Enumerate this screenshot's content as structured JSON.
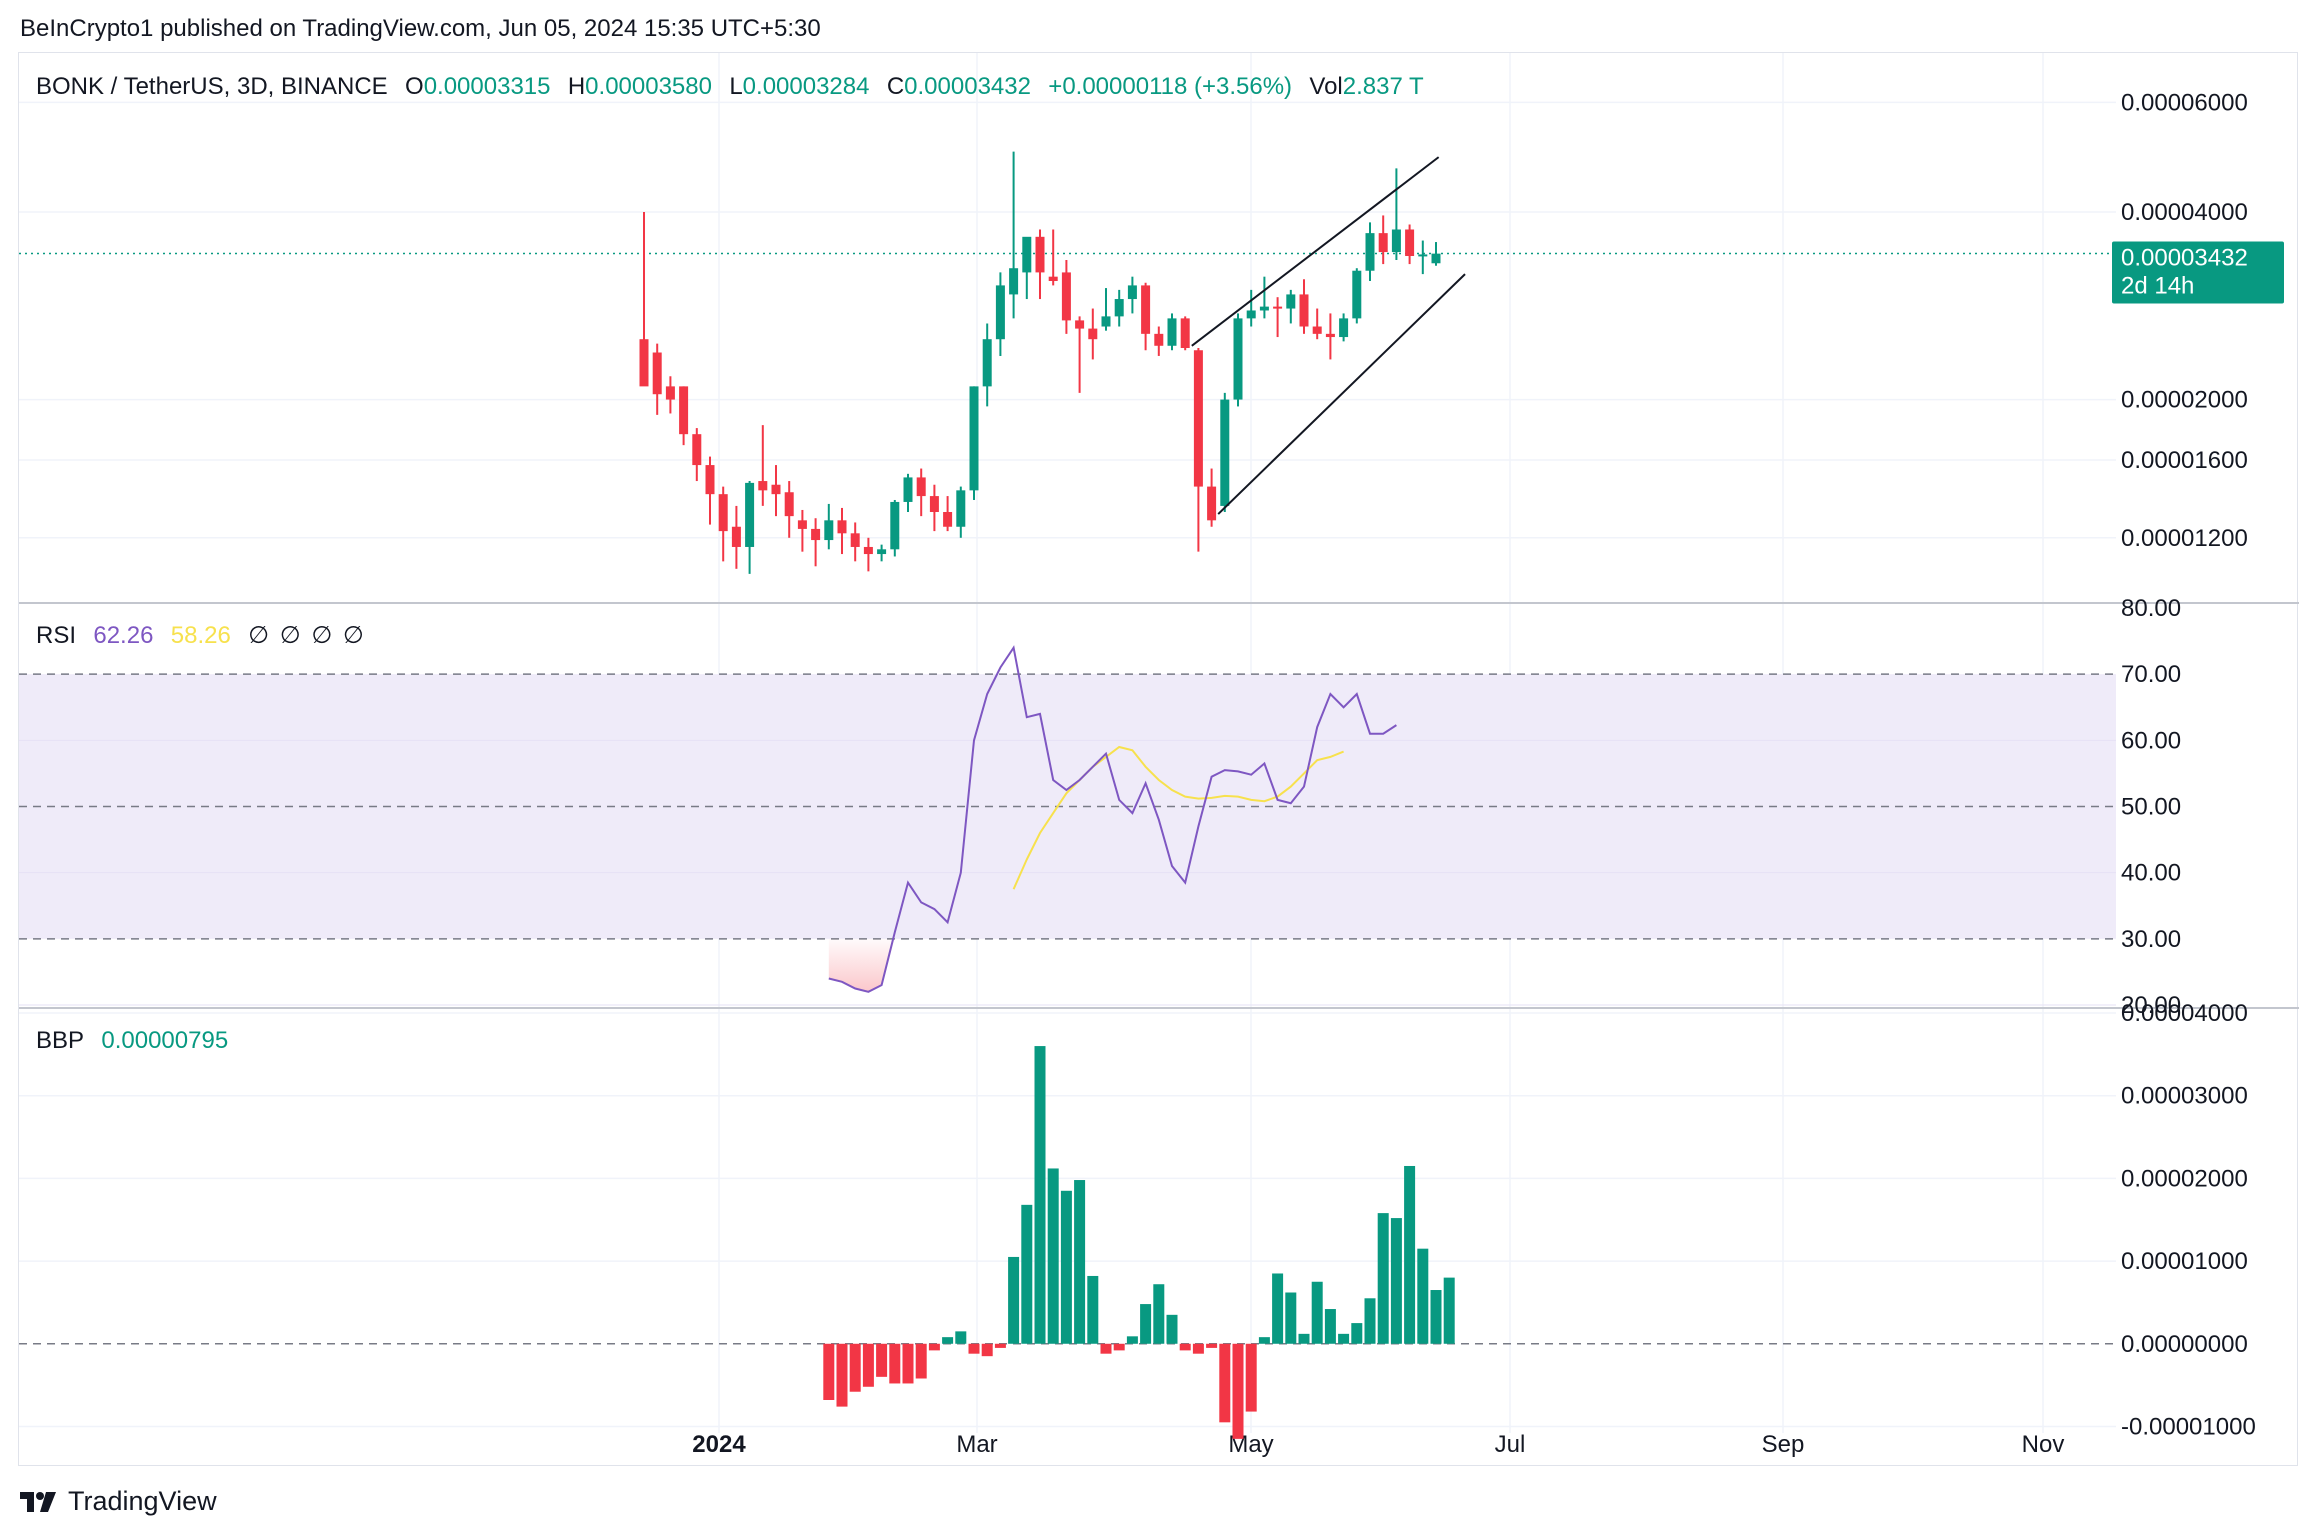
{
  "header": {
    "credit": "BeInCrypto1 published on TradingView.com, Jun 05, 2024 15:35 UTC+5:30"
  },
  "legend_main": {
    "symbol": "BONK / TetherUS, 3D, BINANCE",
    "o_label": "O",
    "o_value": "0.00003315",
    "h_label": "H",
    "h_value": "0.00003580",
    "l_label": "L",
    "l_value": "0.00003284",
    "c_label": "C",
    "c_value": "0.00003432",
    "change": "+0.00000118 (+3.56%)",
    "vol_label": "Vol",
    "vol_value": "2.837 T"
  },
  "legend_rsi": {
    "label": "RSI",
    "rsi_value": "62.26",
    "ma_value": "58.26",
    "na": [
      "∅",
      "∅",
      "∅",
      "∅"
    ]
  },
  "legend_bbp": {
    "label": "BBP",
    "value": "0.00000795"
  },
  "price_tag": {
    "value": "0.00003432",
    "countdown": "2d 14h"
  },
  "footer": {
    "brand": "TradingView"
  },
  "colors": {
    "up": "#089981",
    "down": "#f23645",
    "rsi": "#7e57c2",
    "rsi_ma": "#f7e14d",
    "band": "#efebf9",
    "grid": "#f0f3fa"
  },
  "chart_data": [
    {
      "type": "candlestick",
      "title": "BONK / TetherUS, 3D, BINANCE",
      "scale": "log",
      "y_ticks": [
        "0.00006000",
        "0.00004000",
        "0.00002000",
        "0.00001600",
        "0.00001200"
      ],
      "x_ticks": [
        "2024",
        "Mar",
        "May",
        "Jul",
        "Sep",
        "Nov"
      ],
      "last_price": 3.432e-05,
      "series": [
        {
          "o": 2.5e-05,
          "h": 4e-05,
          "l": 2.19e-05,
          "c": 2.1e-05
        },
        {
          "o": 2.38e-05,
          "h": 2.46e-05,
          "l": 1.89e-05,
          "c": 2.04e-05
        },
        {
          "o": 2.1e-05,
          "h": 2.18e-05,
          "l": 1.9e-05,
          "c": 2e-05
        },
        {
          "o": 2.1e-05,
          "h": 2.1e-05,
          "l": 1.69e-05,
          "c": 1.76e-05
        },
        {
          "o": 1.76e-05,
          "h": 1.8e-05,
          "l": 1.48e-05,
          "c": 1.57e-05
        },
        {
          "o": 1.57e-05,
          "h": 1.62e-05,
          "l": 1.26e-05,
          "c": 1.41e-05
        },
        {
          "o": 1.41e-05,
          "h": 1.45e-05,
          "l": 1.1e-05,
          "c": 1.23e-05
        },
        {
          "o": 1.25e-05,
          "h": 1.35e-05,
          "l": 1.07e-05,
          "c": 1.16e-05
        },
        {
          "o": 1.16e-05,
          "h": 1.48e-05,
          "l": 1.05e-05,
          "c": 1.47e-05
        },
        {
          "o": 1.48e-05,
          "h": 1.82e-05,
          "l": 1.35e-05,
          "c": 1.43e-05
        },
        {
          "o": 1.46e-05,
          "h": 1.57e-05,
          "l": 1.3e-05,
          "c": 1.41e-05
        },
        {
          "o": 1.42e-05,
          "h": 1.48e-05,
          "l": 1.2e-05,
          "c": 1.3e-05
        },
        {
          "o": 1.28e-05,
          "h": 1.33e-05,
          "l": 1.14e-05,
          "c": 1.24e-05
        },
        {
          "o": 1.24e-05,
          "h": 1.29e-05,
          "l": 1.08e-05,
          "c": 1.19e-05
        },
        {
          "o": 1.19e-05,
          "h": 1.36e-05,
          "l": 1.15e-05,
          "c": 1.28e-05
        },
        {
          "o": 1.28e-05,
          "h": 1.34e-05,
          "l": 1.13e-05,
          "c": 1.22e-05
        },
        {
          "o": 1.22e-05,
          "h": 1.27e-05,
          "l": 1.1e-05,
          "c": 1.16e-05
        },
        {
          "o": 1.16e-05,
          "h": 1.2e-05,
          "l": 1.06e-05,
          "c": 1.13e-05
        },
        {
          "o": 1.13e-05,
          "h": 1.17e-05,
          "l": 1.1e-05,
          "c": 1.15e-05
        },
        {
          "o": 1.15e-05,
          "h": 1.38e-05,
          "l": 1.12e-05,
          "c": 1.37e-05
        },
        {
          "o": 1.37e-05,
          "h": 1.52e-05,
          "l": 1.32e-05,
          "c": 1.5e-05
        },
        {
          "o": 1.5e-05,
          "h": 1.55e-05,
          "l": 1.3e-05,
          "c": 1.4e-05
        },
        {
          "o": 1.4e-05,
          "h": 1.46e-05,
          "l": 1.23e-05,
          "c": 1.32e-05
        },
        {
          "o": 1.32e-05,
          "h": 1.4e-05,
          "l": 1.23e-05,
          "c": 1.25e-05
        },
        {
          "o": 1.25e-05,
          "h": 1.45e-05,
          "l": 1.2e-05,
          "c": 1.43e-05
        },
        {
          "o": 1.43e-05,
          "h": 2.1e-05,
          "l": 1.38e-05,
          "c": 2.1e-05
        },
        {
          "o": 2.1e-05,
          "h": 2.65e-05,
          "l": 1.95e-05,
          "c": 2.5e-05
        },
        {
          "o": 2.5e-05,
          "h": 3.2e-05,
          "l": 2.35e-05,
          "c": 3.05e-05
        },
        {
          "o": 2.95e-05,
          "h": 5e-05,
          "l": 2.7e-05,
          "c": 3.25e-05
        },
        {
          "o": 3.2e-05,
          "h": 3.6e-05,
          "l": 2.9e-05,
          "c": 3.65e-05
        },
        {
          "o": 3.65e-05,
          "h": 3.75e-05,
          "l": 2.9e-05,
          "c": 3.2e-05
        },
        {
          "o": 3.15e-05,
          "h": 3.75e-05,
          "l": 3.05e-05,
          "c": 3.1e-05
        },
        {
          "o": 3.2e-05,
          "h": 3.35e-05,
          "l": 2.55e-05,
          "c": 2.68e-05
        },
        {
          "o": 2.68e-05,
          "h": 2.72e-05,
          "l": 2.05e-05,
          "c": 2.6e-05
        },
        {
          "o": 2.6e-05,
          "h": 2.8e-05,
          "l": 2.32e-05,
          "c": 2.5e-05
        },
        {
          "o": 2.62e-05,
          "h": 3.02e-05,
          "l": 2.58e-05,
          "c": 2.72e-05
        },
        {
          "o": 2.72e-05,
          "h": 3e-05,
          "l": 2.62e-05,
          "c": 2.9e-05
        },
        {
          "o": 2.9e-05,
          "h": 3.15e-05,
          "l": 2.75e-05,
          "c": 3.05e-05
        },
        {
          "o": 3.05e-05,
          "h": 3.08e-05,
          "l": 2.4e-05,
          "c": 2.55e-05
        },
        {
          "o": 2.55e-05,
          "h": 2.62e-05,
          "l": 2.35e-05,
          "c": 2.44e-05
        },
        {
          "o": 2.44e-05,
          "h": 2.75e-05,
          "l": 2.4e-05,
          "c": 2.7e-05
        },
        {
          "o": 2.7e-05,
          "h": 2.72e-05,
          "l": 2.4e-05,
          "c": 2.42e-05
        },
        {
          "o": 2.4e-05,
          "h": 2.42e-05,
          "l": 1.14e-05,
          "c": 1.45e-05
        },
        {
          "o": 1.45e-05,
          "h": 1.55e-05,
          "l": 1.25e-05,
          "c": 1.28e-05
        },
        {
          "o": 1.35e-05,
          "h": 2.05e-05,
          "l": 1.32e-05,
          "c": 2e-05
        },
        {
          "o": 2e-05,
          "h": 2.75e-05,
          "l": 1.95e-05,
          "c": 2.7e-05
        },
        {
          "o": 2.7e-05,
          "h": 3e-05,
          "l": 2.62e-05,
          "c": 2.78e-05
        },
        {
          "o": 2.78e-05,
          "h": 3.15e-05,
          "l": 2.7e-05,
          "c": 2.82e-05
        },
        {
          "o": 2.82e-05,
          "h": 2.92e-05,
          "l": 2.52e-05,
          "c": 2.8e-05
        },
        {
          "o": 2.8e-05,
          "h": 3e-05,
          "l": 2.65e-05,
          "c": 2.95e-05
        },
        {
          "o": 2.95e-05,
          "h": 3.12e-05,
          "l": 2.55e-05,
          "c": 2.62e-05
        },
        {
          "o": 2.62e-05,
          "h": 2.8e-05,
          "l": 2.5e-05,
          "c": 2.55e-05
        },
        {
          "o": 2.55e-05,
          "h": 2.75e-05,
          "l": 2.32e-05,
          "c": 2.52e-05
        },
        {
          "o": 2.52e-05,
          "h": 2.75e-05,
          "l": 2.48e-05,
          "c": 2.7e-05
        },
        {
          "o": 2.7e-05,
          "h": 3.25e-05,
          "l": 2.65e-05,
          "c": 3.22e-05
        },
        {
          "o": 3.22e-05,
          "h": 3.85e-05,
          "l": 3.1e-05,
          "c": 3.7e-05
        },
        {
          "o": 3.7e-05,
          "h": 3.95e-05,
          "l": 3.3e-05,
          "c": 3.45e-05
        },
        {
          "o": 3.45e-05,
          "h": 4.7e-05,
          "l": 3.35e-05,
          "c": 3.75e-05
        },
        {
          "o": 3.75e-05,
          "h": 3.82e-05,
          "l": 3.3e-05,
          "c": 3.4e-05
        },
        {
          "o": 3.4e-05,
          "h": 3.6e-05,
          "l": 3.18e-05,
          "c": 3.42e-05
        },
        {
          "o": 3.31e-05,
          "h": 3.58e-05,
          "l": 3.28e-05,
          "c": 3.43e-05
        }
      ]
    },
    {
      "type": "line",
      "title": "RSI",
      "y_ticks": [
        "80.00",
        "70.00",
        "60.00",
        "50.00",
        "40.00",
        "30.00",
        "20.00"
      ],
      "ylim": [
        20,
        80
      ],
      "band": [
        30,
        70
      ],
      "series": [
        {
          "name": "RSI",
          "start_index": 14,
          "values": [
            24,
            23.5,
            22.5,
            22,
            23,
            31,
            38.5,
            35.5,
            34.5,
            32.5,
            40,
            60,
            67,
            71,
            74,
            63.5,
            64,
            54,
            52.5,
            54,
            56,
            58,
            51,
            49,
            53.5,
            48,
            41,
            38.5,
            47,
            54.5,
            55.5,
            55.3,
            54.8,
            56.5,
            51,
            50.5,
            53,
            62,
            67,
            65,
            67,
            61,
            61,
            62.3
          ]
        },
        {
          "name": "MA",
          "start_index": 28,
          "values": [
            37.5,
            42,
            46,
            49,
            52,
            54,
            56,
            57.5,
            59,
            58.5,
            56,
            54,
            52.5,
            51.5,
            51.2,
            51.3,
            51.6,
            51.5,
            51,
            50.8,
            51.5,
            53,
            55,
            57,
            57.5,
            58.3
          ]
        }
      ]
    },
    {
      "type": "bar",
      "title": "BBP",
      "y_ticks": [
        "0.00004000",
        "0.00003000",
        "0.00002000",
        "0.00001000",
        "0.00000000",
        "-0.00001000"
      ],
      "ylim": [
        -1.2e-05,
        4e-05
      ],
      "start_index": 14,
      "values": [
        -6.8e-06,
        -7.6e-06,
        -5.8e-06,
        -5.2e-06,
        -4e-06,
        -4.8e-06,
        -4.8e-06,
        -4.2e-06,
        -8e-07,
        8e-07,
        1.5e-06,
        -1.2e-06,
        -1.5e-06,
        -5e-07,
        1.05e-05,
        1.68e-05,
        3.6e-05,
        2.12e-05,
        1.85e-05,
        1.98e-05,
        8.2e-06,
        -1.2e-06,
        -8e-07,
        9e-07,
        4.8e-06,
        7.2e-06,
        3.5e-06,
        -8e-07,
        -1.2e-06,
        -5e-07,
        -9.5e-06,
        -1.15e-05,
        -8.2e-06,
        8e-07,
        8.5e-06,
        6.2e-06,
        1.2e-06,
        7.5e-06,
        4.2e-06,
        1.2e-06,
        2.5e-06,
        5.5e-06,
        1.58e-05,
        1.52e-05,
        2.15e-05,
        1.15e-05,
        6.5e-06,
        8e-06
      ]
    }
  ]
}
